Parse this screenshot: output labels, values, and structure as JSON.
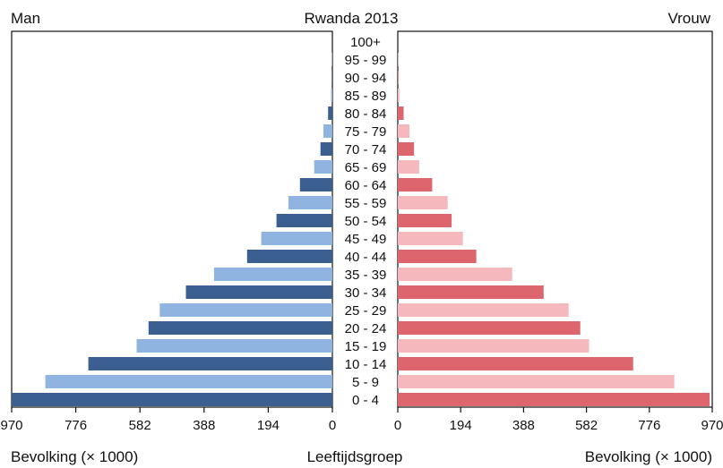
{
  "chart_data": {
    "type": "bar",
    "title": "Rwanda 2013",
    "left_label": "Man",
    "right_label": "Vrouw",
    "xlabel_left": "Bevolking (× 1000)",
    "xlabel_center": "Leeftijdsgroep",
    "xlabel_right": "Bevolking (× 1000)",
    "xlim": [
      0,
      970
    ],
    "ticks_left": [
      "970",
      "776",
      "582",
      "388",
      "194",
      "0"
    ],
    "ticks_right": [
      "0",
      "194",
      "388",
      "582",
      "776",
      "970"
    ],
    "tick_values_left": [
      970,
      776,
      582,
      388,
      194,
      0
    ],
    "tick_values_right": [
      0,
      194,
      388,
      582,
      776,
      970
    ],
    "categories": [
      "0 - 4",
      "5 - 9",
      "10 - 14",
      "15 - 19",
      "20 - 24",
      "25 - 29",
      "30 - 34",
      "35 - 39",
      "40 - 44",
      "45 - 49",
      "50 - 54",
      "55 - 59",
      "60 - 64",
      "65 - 69",
      "70 - 74",
      "75 - 79",
      "80 - 84",
      "85 - 89",
      "90 - 94",
      "95 - 99",
      "100+"
    ],
    "series": [
      {
        "name": "Man",
        "side": "left",
        "values": [
          970,
          868,
          738,
          592,
          556,
          522,
          443,
          358,
          258,
          215,
          169,
          133,
          98,
          55,
          36,
          27,
          13,
          4,
          2,
          1,
          0
        ]
      },
      {
        "name": "Vrouw",
        "side": "right",
        "values": [
          962,
          853,
          726,
          590,
          563,
          527,
          450,
          353,
          242,
          201,
          166,
          154,
          106,
          66,
          50,
          36,
          18,
          5,
          2,
          1,
          0
        ]
      }
    ],
    "colors": {
      "man_dark": "#3c5f92",
      "man_light": "#90b4e0",
      "vrouw_dark": "#dd656d",
      "vrouw_light": "#f5b8bd",
      "axis": "#111111"
    }
  }
}
